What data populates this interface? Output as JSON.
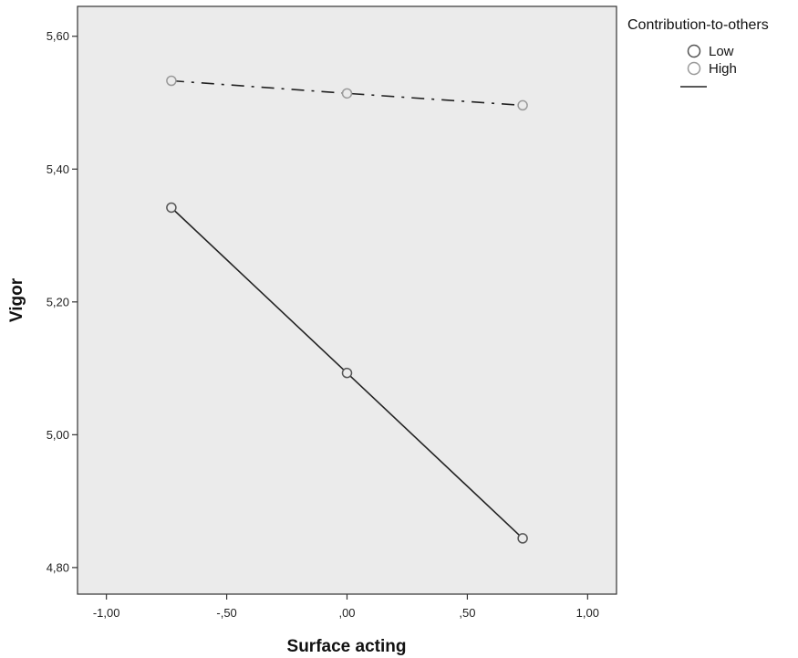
{
  "chart_data": {
    "type": "line",
    "xlabel": "Surface acting",
    "ylabel": "Vigor",
    "xlim": [
      -1.12,
      1.12
    ],
    "ylim": [
      4.76,
      5.645
    ],
    "x_ticks": [
      -1.0,
      -0.5,
      0.0,
      0.5,
      1.0
    ],
    "x_tick_labels": [
      "-1,00",
      "-,50",
      ",00",
      ",50",
      "1,00"
    ],
    "y_ticks": [
      4.8,
      5.0,
      5.2,
      5.4,
      5.6
    ],
    "y_tick_labels": [
      "4,80",
      "5,00",
      "5,20",
      "5,40",
      "5,60"
    ],
    "x": [
      -0.73,
      0.0,
      0.73
    ],
    "series": [
      {
        "name": "Low",
        "values": [
          5.342,
          5.093,
          4.844
        ],
        "line_style": "solid",
        "marker_color": "#555555"
      },
      {
        "name": "High",
        "values": [
          5.533,
          5.514,
          5.496
        ],
        "line_style": "dash-dot",
        "marker_color": "#9a9a9a"
      }
    ],
    "grid": false,
    "plot_background": "#ebebeb",
    "line_color": "#222222",
    "legend": {
      "title": "Contribution-to-others",
      "placement": "right-top"
    }
  }
}
